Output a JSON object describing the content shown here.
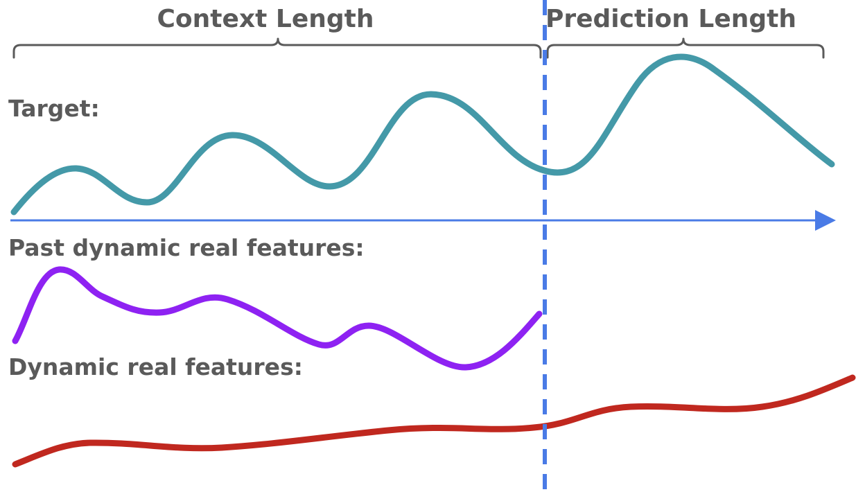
{
  "header": {
    "context_label": "Context Length",
    "prediction_label": "Prediction Length"
  },
  "rows": {
    "target_label": "Target:",
    "past_dynamic_label": "Past dynamic real features:",
    "dynamic_label": "Dynamic real features:"
  },
  "colors": {
    "label_text": "#5a5a5a",
    "time_axis": "#4a7be6",
    "split_line": "#4a7be6",
    "target_series": "#4499a8",
    "past_dynamic_series": "#8e22f2",
    "dynamic_series": "#c0281f"
  }
}
